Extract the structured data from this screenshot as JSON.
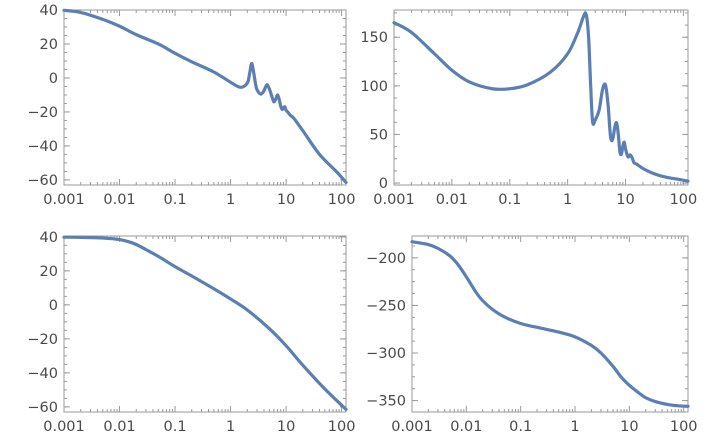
{
  "chart_data": [
    {
      "type": "line",
      "x_scale": "log",
      "xlim": [
        0.001,
        120
      ],
      "ylim": [
        -63,
        40
      ],
      "x_ticks": [
        0.001,
        0.01,
        0.1,
        1,
        10,
        100
      ],
      "x_tick_labels": [
        "0.001",
        "0.01",
        "0.1",
        "1",
        "10",
        "100"
      ],
      "y_ticks": [
        40,
        20,
        0,
        -20,
        -40,
        -60
      ],
      "y_tick_labels": [
        "40",
        "20",
        "0",
        "−20",
        "−40",
        "−60"
      ],
      "color": "#5b7fb5",
      "series": [
        {
          "x": [
            0.001,
            0.002,
            0.005,
            0.01,
            0.02,
            0.05,
            0.1,
            0.2,
            0.5,
            1,
            1.5,
            2,
            2.2,
            2.4,
            2.6,
            2.8,
            3.0,
            3.5,
            4.0,
            4.5,
            5.0,
            5.5,
            6.0,
            6.5,
            7.0,
            7.5,
            8.0,
            8.5,
            9.0,
            9.5,
            10,
            11,
            12,
            14,
            20,
            40,
            80,
            120
          ],
          "y": [
            39.8,
            38.6,
            34.5,
            30.5,
            25.5,
            20.0,
            14.5,
            9.5,
            3.5,
            -2.5,
            -5.5,
            -3.0,
            2.5,
            8.5,
            3.5,
            -3.0,
            -7.0,
            -9.5,
            -7.5,
            -4.0,
            -6.5,
            -10.5,
            -14.0,
            -12.5,
            -10.0,
            -12.5,
            -16.5,
            -18.5,
            -17.5,
            -17.0,
            -19.0,
            -20.5,
            -22.0,
            -24.0,
            -31.0,
            -45.0,
            -55.0,
            -61.5
          ]
        }
      ]
    },
    {
      "type": "line",
      "x_scale": "log",
      "xlim": [
        0.001,
        120
      ],
      "ylim": [
        -2,
        178
      ],
      "x_ticks": [
        0.001,
        0.01,
        0.1,
        1,
        10,
        100
      ],
      "x_tick_labels": [
        "0.001",
        "0.01",
        "0.1",
        "1",
        "10",
        "100"
      ],
      "y_ticks": [
        150,
        100,
        50,
        0
      ],
      "y_tick_labels": [
        "150",
        "100",
        "50",
        "0"
      ],
      "color": "#5b7fb5",
      "series": [
        {
          "x": [
            0.001,
            0.002,
            0.005,
            0.01,
            0.02,
            0.05,
            0.1,
            0.2,
            0.5,
            1,
            1.5,
            1.9,
            2.1,
            2.3,
            2.5,
            2.7,
            3.0,
            3.5,
            4.0,
            4.5,
            5.0,
            5.5,
            6.0,
            6.5,
            7.0,
            7.5,
            8.0,
            8.5,
            9.0,
            9.5,
            10,
            11,
            12,
            13,
            14,
            16,
            20,
            30,
            50,
            80,
            120
          ],
          "y": [
            165,
            155,
            133,
            116,
            104,
            97,
            97,
            101,
            114,
            133,
            155,
            172,
            173,
            150,
            100,
            63,
            65,
            75,
            96,
            101,
            80,
            48,
            45,
            57,
            62,
            50,
            32,
            30,
            38,
            42,
            35,
            27,
            29,
            26,
            21,
            19,
            15,
            10,
            6,
            4,
            2
          ]
        }
      ]
    },
    {
      "type": "line",
      "x_scale": "log",
      "xlim": [
        0.001,
        120
      ],
      "ylim": [
        -63,
        40.5
      ],
      "x_ticks": [
        0.001,
        0.01,
        0.1,
        1,
        10,
        100
      ],
      "x_tick_labels": [
        "0.001",
        "0.01",
        "0.1",
        "1",
        "10",
        "100"
      ],
      "y_ticks": [
        40,
        20,
        0,
        -20,
        -40,
        -60
      ],
      "y_tick_labels": [
        "40",
        "20",
        "0",
        "−20",
        "−40",
        "−60"
      ],
      "color": "#5b7fb5",
      "series": [
        {
          "x": [
            0.001,
            0.002,
            0.005,
            0.01,
            0.015,
            0.02,
            0.03,
            0.05,
            0.1,
            0.2,
            0.5,
            1,
            2,
            5,
            10,
            20,
            50,
            100,
            120
          ],
          "y": [
            39.8,
            39.7,
            39.3,
            38.4,
            37.0,
            35.5,
            32.5,
            28.5,
            22.5,
            17.0,
            9.5,
            3.5,
            -3.0,
            -14.0,
            -24.0,
            -35.5,
            -49.5,
            -59.0,
            -61.5
          ]
        }
      ]
    },
    {
      "type": "line",
      "x_scale": "log",
      "xlim": [
        0.001,
        120
      ],
      "ylim": [
        -362,
        -177
      ],
      "x_ticks": [
        0.001,
        0.01,
        0.1,
        1,
        10,
        100
      ],
      "x_tick_labels": [
        "0.001",
        "0.01",
        "0.1",
        "1",
        "10",
        "100"
      ],
      "y_ticks": [
        -200,
        -250,
        -300,
        -350
      ],
      "y_tick_labels": [
        "−200",
        "−250",
        "−300",
        "−350"
      ],
      "color": "#5b7fb5",
      "series": [
        {
          "x": [
            0.001,
            0.002,
            0.003,
            0.005,
            0.007,
            0.01,
            0.015,
            0.02,
            0.03,
            0.05,
            0.1,
            0.2,
            0.5,
            1,
            2,
            3,
            5,
            7,
            10,
            15,
            20,
            30,
            50,
            80,
            120
          ],
          "y": [
            -183,
            -186,
            -190,
            -198,
            -207,
            -220,
            -236,
            -245,
            -254,
            -262,
            -269,
            -273,
            -278,
            -283,
            -292,
            -300,
            -314,
            -325,
            -334,
            -342,
            -347,
            -351,
            -354,
            -355.5,
            -356
          ]
        }
      ]
    }
  ]
}
